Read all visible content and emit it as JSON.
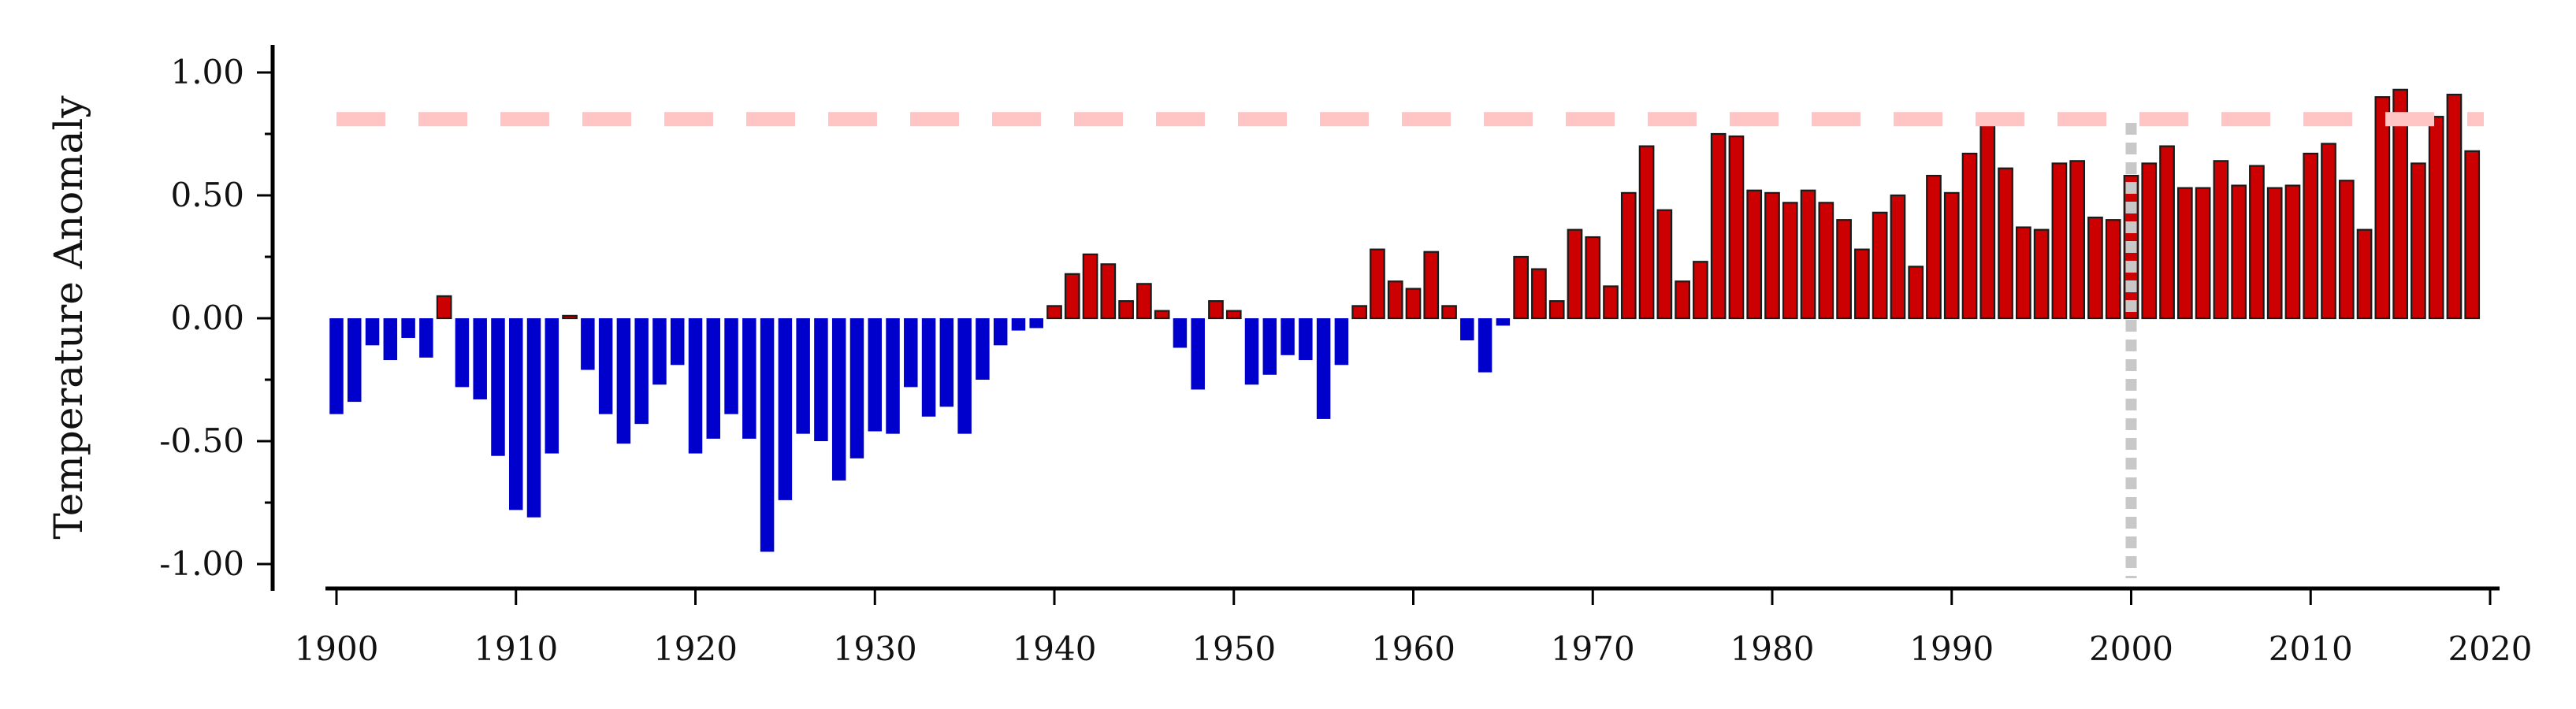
{
  "chart_data": {
    "type": "bar",
    "title": "",
    "xlabel": "",
    "ylabel": "Temperature Anomaly",
    "xlim": [
      1899.5,
      2020.5
    ],
    "ylim": [
      -1.1,
      1.1
    ],
    "x_ticks": [
      "1900",
      "1910",
      "1920",
      "1930",
      "1940",
      "1950",
      "1960",
      "1970",
      "1980",
      "1990",
      "2000",
      "2010",
      "2020"
    ],
    "y_ticks": [
      "1.00",
      "0.50",
      "0.00",
      "-0.50",
      "-1.00"
    ],
    "grid": false,
    "legend": "none",
    "colors": {
      "positive": "#cc0000",
      "negative": "#0000cc",
      "reference_line": "#ffc4c4",
      "vertical_marker": "#c8c8c8"
    },
    "reference_line": {
      "y": 0.81
    },
    "vertical_marker": {
      "x": 2000
    },
    "x": [
      1900,
      1901,
      1902,
      1903,
      1904,
      1905,
      1906,
      1907,
      1908,
      1909,
      1910,
      1911,
      1912,
      1913,
      1914,
      1915,
      1916,
      1917,
      1918,
      1919,
      1920,
      1921,
      1922,
      1923,
      1924,
      1925,
      1926,
      1927,
      1928,
      1929,
      1930,
      1931,
      1932,
      1933,
      1934,
      1935,
      1936,
      1937,
      1938,
      1939,
      1940,
      1941,
      1942,
      1943,
      1944,
      1945,
      1946,
      1947,
      1948,
      1949,
      1950,
      1951,
      1952,
      1953,
      1954,
      1955,
      1956,
      1957,
      1958,
      1959,
      1960,
      1961,
      1962,
      1963,
      1964,
      1965,
      1966,
      1967,
      1968,
      1969,
      1970,
      1971,
      1972,
      1973,
      1974,
      1975,
      1976,
      1977,
      1978,
      1979,
      1980,
      1981,
      1982,
      1983,
      1984,
      1985,
      1986,
      1987,
      1988,
      1989,
      1990,
      1991,
      1992,
      1993,
      1994,
      1995,
      1996,
      1997,
      1998,
      1999,
      2000,
      2001,
      2002,
      2003,
      2004,
      2005,
      2006,
      2007,
      2008,
      2009,
      2010,
      2011,
      2012,
      2013,
      2014,
      2015,
      2016,
      2017,
      2018,
      2019
    ],
    "values": [
      -0.39,
      -0.34,
      -0.11,
      -0.17,
      -0.08,
      -0.16,
      0.09,
      -0.28,
      -0.33,
      -0.56,
      -0.78,
      -0.81,
      -0.55,
      0.01,
      -0.21,
      -0.39,
      -0.51,
      -0.43,
      -0.27,
      -0.19,
      -0.55,
      -0.49,
      -0.39,
      -0.49,
      -0.95,
      -0.74,
      -0.47,
      -0.5,
      -0.66,
      -0.57,
      -0.46,
      -0.47,
      -0.28,
      -0.4,
      -0.36,
      -0.47,
      -0.25,
      -0.11,
      -0.05,
      -0.04,
      0.05,
      0.18,
      0.26,
      0.22,
      0.07,
      0.14,
      0.03,
      -0.12,
      -0.29,
      0.07,
      0.03,
      -0.27,
      -0.23,
      -0.15,
      -0.17,
      -0.41,
      -0.19,
      0.05,
      0.28,
      0.15,
      0.12,
      0.27,
      0.05,
      -0.09,
      -0.22,
      -0.03,
      0.25,
      0.2,
      0.07,
      0.36,
      0.33,
      0.13,
      0.51,
      0.7,
      0.44,
      0.15,
      0.23,
      0.75,
      0.74,
      0.52,
      0.51,
      0.47,
      0.52,
      0.47,
      0.4,
      0.28,
      0.43,
      0.5,
      0.21,
      0.58,
      0.51,
      0.67,
      0.8,
      0.61,
      0.37,
      0.36,
      0.63,
      0.64,
      0.41,
      0.4,
      0.58,
      0.63,
      0.7,
      0.53,
      0.53,
      0.64,
      0.54,
      0.62,
      0.53,
      0.54,
      0.67,
      0.71,
      0.56,
      0.36,
      0.9,
      0.93,
      0.63,
      0.82,
      0.91,
      0.68
    ]
  }
}
